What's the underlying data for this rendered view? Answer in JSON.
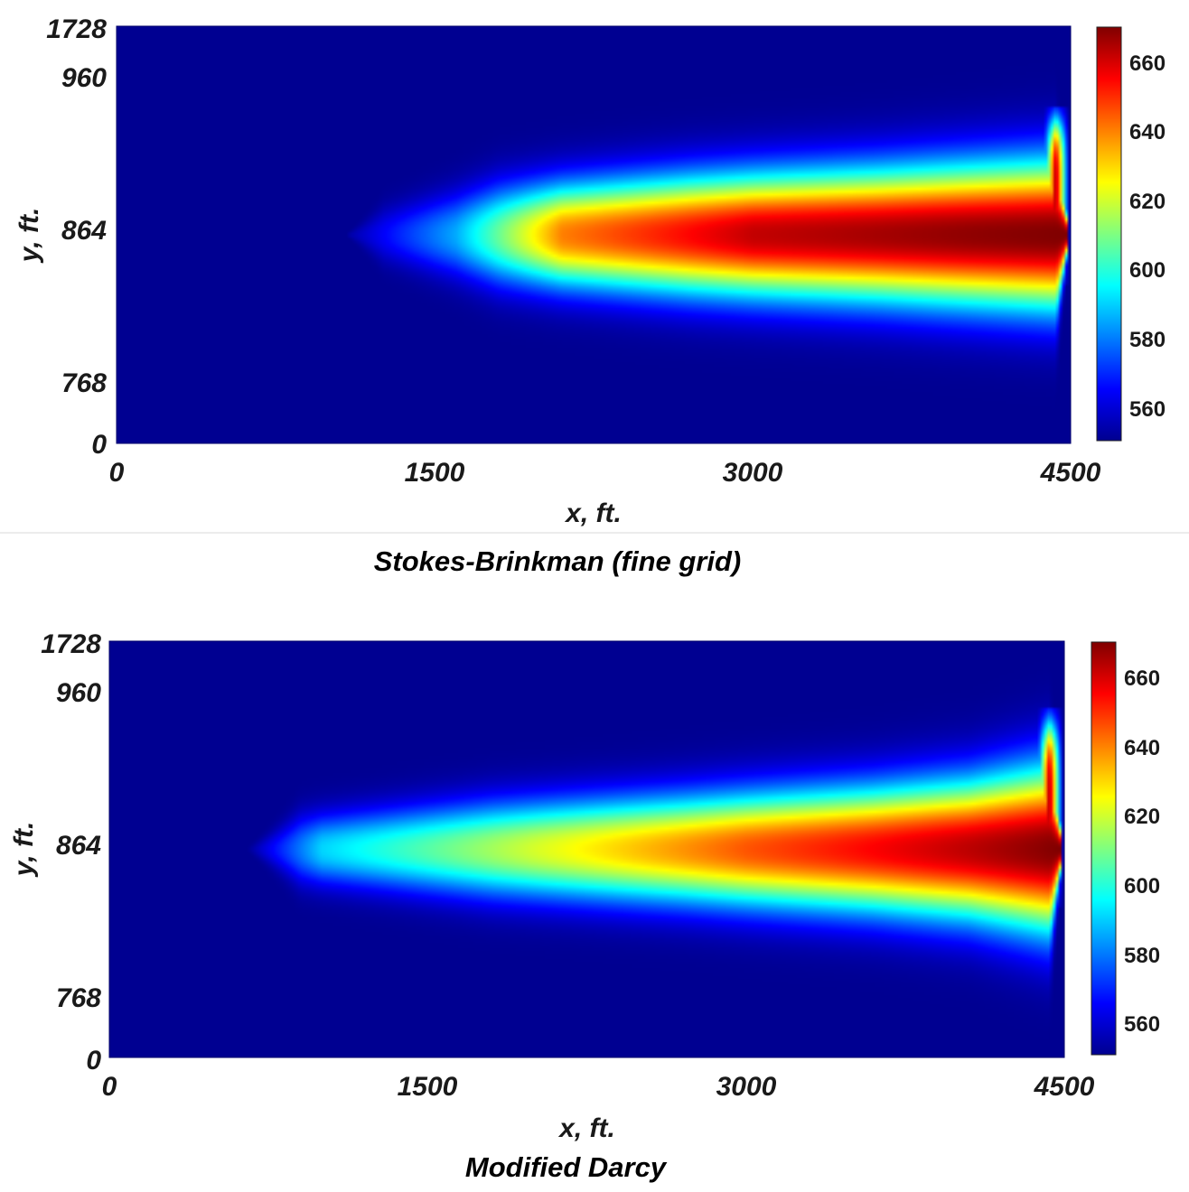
{
  "chart_data": [
    {
      "type": "heatmap",
      "caption": "Stokes-Brinkman (fine grid)",
      "xlabel": "x, ft.",
      "ylabel": "y, ft.",
      "xticks": [
        "0",
        "1500",
        "3000",
        "4500"
      ],
      "yticks": [
        "0",
        "768",
        "864",
        "960",
        "1728"
      ],
      "xlim": [
        0,
        4500
      ],
      "ylim": [
        0,
        1728
      ],
      "colormap": "jet",
      "colorbar": {
        "min": 550,
        "max": 670,
        "ticks": [
          "560",
          "580",
          "600",
          "620",
          "640",
          "660"
        ]
      },
      "field": {
        "background": 552,
        "peak": 670,
        "plume_centerline_y": 864,
        "plume_tip_x": 1050,
        "plume_right_x": 4490,
        "core_color_start_x": 2100,
        "values_at_centerline": [
          [
            1050,
            552
          ],
          [
            1600,
            585
          ],
          [
            2100,
            640
          ],
          [
            3000,
            662
          ],
          [
            4000,
            668
          ],
          [
            4480,
            670
          ]
        ]
      }
    },
    {
      "type": "heatmap",
      "caption": "Modified Darcy",
      "xlabel": "x, ft.",
      "ylabel": "y, ft.",
      "xticks": [
        "0",
        "1500",
        "3000",
        "4500"
      ],
      "yticks": [
        "0",
        "768",
        "864",
        "960",
        "1728"
      ],
      "xlim": [
        0,
        4500
      ],
      "ylim": [
        0,
        1728
      ],
      "colormap": "jet",
      "colorbar": {
        "min": 550,
        "max": 670,
        "ticks": [
          "560",
          "580",
          "600",
          "620",
          "640",
          "660"
        ]
      },
      "field": {
        "background": 552,
        "peak": 670,
        "plume_centerline_y": 864,
        "plume_tip_x": 650,
        "plume_right_x": 4490,
        "core_color_start_x": 1300,
        "values_at_centerline": [
          [
            650,
            552
          ],
          [
            1000,
            590
          ],
          [
            2000,
            620
          ],
          [
            3000,
            645
          ],
          [
            4000,
            662
          ],
          [
            4480,
            670
          ]
        ]
      }
    }
  ]
}
